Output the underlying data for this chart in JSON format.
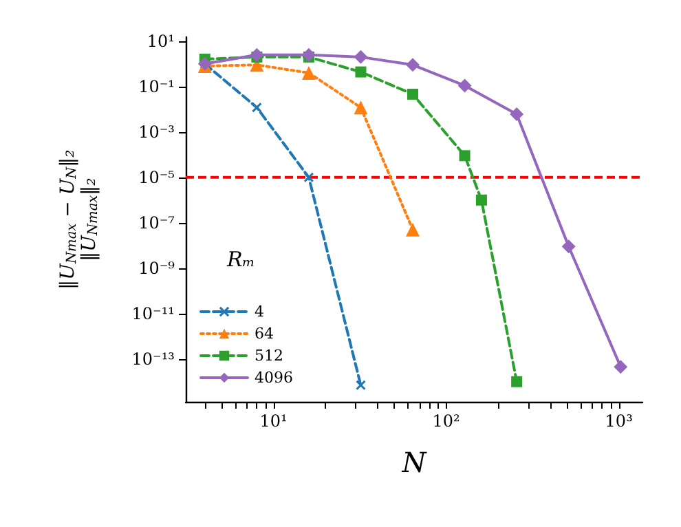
{
  "chart_data": {
    "type": "line",
    "xlabel": "N",
    "ylabel": "‖U$_{Nmax}$ − U$_{N}$‖₂\n‖U$_{Nmax}$‖₂",
    "legend_title": "Rₘ",
    "log": "xy",
    "xlim": [
      3.1,
      1370
    ],
    "ylim": [
      1.3e-15,
      15
    ],
    "xticks": [
      {
        "value": 4,
        "label": null
      },
      {
        "value": 5,
        "label": null
      },
      {
        "value": 6,
        "label": null
      },
      {
        "value": 7,
        "label": null
      },
      {
        "value": 8,
        "label": null
      },
      {
        "value": 9,
        "label": null
      },
      {
        "value": 10,
        "label": "10¹"
      },
      {
        "value": 20,
        "label": null
      },
      {
        "value": 30,
        "label": null
      },
      {
        "value": 40,
        "label": null
      },
      {
        "value": 50,
        "label": null
      },
      {
        "value": 60,
        "label": null
      },
      {
        "value": 70,
        "label": null
      },
      {
        "value": 80,
        "label": null
      },
      {
        "value": 90,
        "label": null
      },
      {
        "value": 100,
        "label": "10²"
      },
      {
        "value": 200,
        "label": null
      },
      {
        "value": 300,
        "label": null
      },
      {
        "value": 400,
        "label": null
      },
      {
        "value": 500,
        "label": null
      },
      {
        "value": 600,
        "label": null
      },
      {
        "value": 700,
        "label": null
      },
      {
        "value": 800,
        "label": null
      },
      {
        "value": 900,
        "label": null
      },
      {
        "value": 1000,
        "label": "10³"
      }
    ],
    "yticks": [
      {
        "value": 1e-13,
        "label": "10⁻¹³"
      },
      {
        "value": 1e-11,
        "label": "10⁻¹¹"
      },
      {
        "value": 1e-09,
        "label": "10⁻⁹"
      },
      {
        "value": 1e-07,
        "label": "10⁻⁷"
      },
      {
        "value": 1e-05,
        "label": "10⁻⁵"
      },
      {
        "value": 0.001,
        "label": "10⁻³"
      },
      {
        "value": 0.1,
        "label": "10⁻¹"
      },
      {
        "value": 10,
        "label": "10¹"
      }
    ],
    "grid": false,
    "legend": "bottom left",
    "series": [
      {
        "name": "4",
        "color": "#1f77b4",
        "marker": "cross",
        "line_style": "dashed",
        "x": [
          4,
          8,
          16,
          32
        ],
        "values": [
          1.0,
          0.012,
          1e-05,
          7e-15
        ]
      },
      {
        "name": "64",
        "color": "#ff7f0e",
        "marker": "triangle",
        "line_style": "dotted",
        "x": [
          4,
          8,
          16,
          32,
          64
        ],
        "values": [
          0.8,
          0.9,
          0.4,
          0.012,
          5e-08
        ]
      },
      {
        "name": "512",
        "color": "#2ca02c",
        "marker": "square",
        "line_style": "dashed",
        "x": [
          4,
          8,
          16,
          32,
          64,
          128,
          160,
          256
        ],
        "values": [
          1.6,
          2,
          2,
          0.44,
          0.046,
          9e-05,
          1e-06,
          1e-14
        ]
      },
      {
        "name": "4096",
        "color": "#9467bd",
        "marker": "diamond",
        "line_style": "solid",
        "x": [
          4,
          8,
          16,
          32,
          64,
          128,
          256,
          512,
          1024
        ],
        "values": [
          1.0,
          2.5,
          2.5,
          2.0,
          0.9,
          0.11,
          0.006,
          9e-09,
          4.5e-14
        ]
      }
    ],
    "ref_lines": [
      {
        "axis": "y",
        "value": 1e-05,
        "color": "#ff0000",
        "line_style": "dashed"
      }
    ]
  }
}
